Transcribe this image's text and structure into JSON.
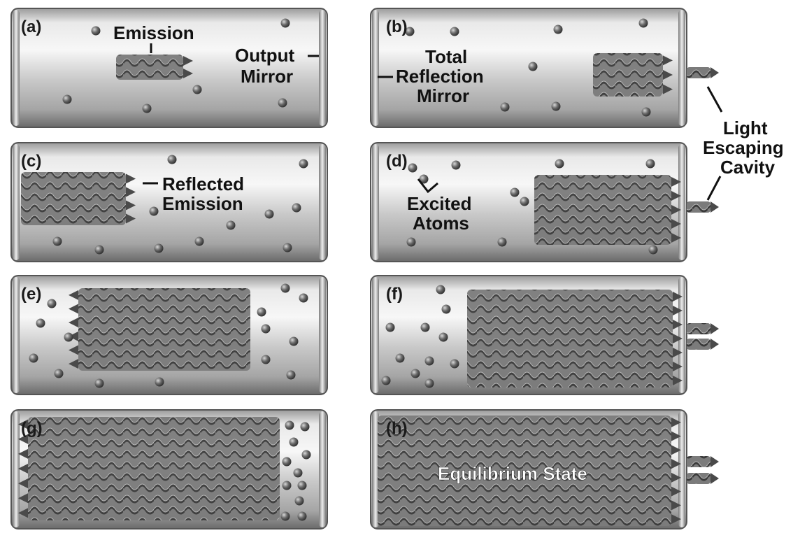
{
  "panels": [
    {
      "label": "(a)"
    },
    {
      "label": "(b)"
    },
    {
      "label": "(c)"
    },
    {
      "label": "(d)"
    },
    {
      "label": "(e)"
    },
    {
      "label": "(f)"
    },
    {
      "label": "(g)"
    },
    {
      "label": "(h)"
    }
  ],
  "annotations": {
    "emission": "Emission",
    "output_mirror": [
      "Output",
      "Mirror"
    ],
    "total_reflection_mirror": [
      "Total",
      "Reflection",
      "Mirror"
    ],
    "light_escaping_cavity": [
      "Light",
      "Escaping",
      "Cavity"
    ],
    "reflected_emission": [
      "Reflected",
      "Emission"
    ],
    "excited_atoms": [
      "Excited",
      "Atoms"
    ],
    "equilibrium_state": "Equilibrium State"
  },
  "colors": {
    "tube_light": "#f2f2f2",
    "tube_mid": "#bdbdbd",
    "tube_dark": "#6e6e6e",
    "wave": "#555555",
    "atom": "#5a5a5a"
  }
}
